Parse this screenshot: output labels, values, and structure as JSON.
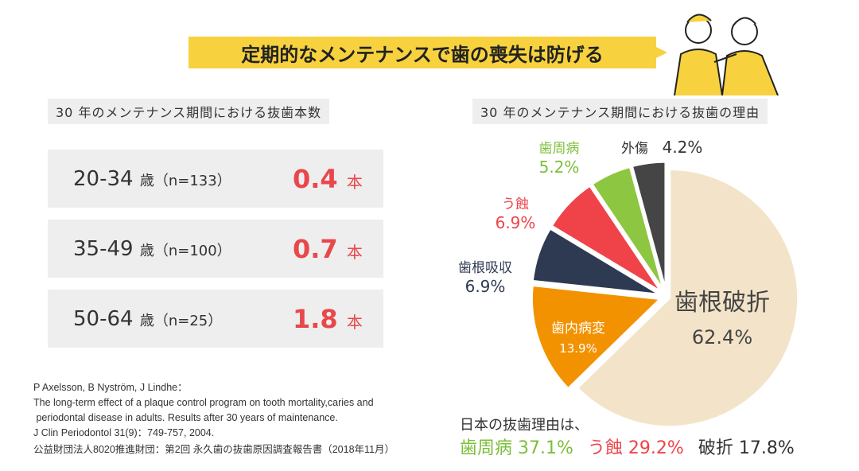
{
  "title": "定期的なメンテナンスで歯の喪失は防げる",
  "left": {
    "subtitle": "30 年のメンテナンス期間における抜歯本数",
    "rows": [
      {
        "age": "20-34",
        "unit_age": "歳",
        "n": "（n=133）",
        "value": "0.4",
        "unit": "本"
      },
      {
        "age": "35-49",
        "unit_age": "歳",
        "n": "（n=100）",
        "value": "0.7",
        "unit": "本"
      },
      {
        "age": "50-64",
        "unit_age": "歳",
        "n": "（n=25）",
        "value": "1.8",
        "unit": "本"
      }
    ]
  },
  "references": [
    "P Axelsson, B Nyström, J Lindhe：",
    "The long-term effect of a plaque control program on tooth mortality,caries and",
    " periodontal disease in adults. Results after 30 years of maintenance.",
    "J Clin Periodontol 31(9)：749-757, 2004.",
    "公益財団法人8020推進財団：第2回 永久歯の抜歯原因調査報告書（2018年11月）"
  ],
  "chart_data": {
    "type": "pie",
    "title": "30 年のメンテナンス期間における抜歯の理由",
    "start": "12 o'clock, clockwise",
    "slices": [
      {
        "label": "歯根破折",
        "value": 62.4,
        "color": "#f3e4c9",
        "text_color": "#444444"
      },
      {
        "label": "歯内病変",
        "value": 13.9,
        "color": "#f39200",
        "text_color": "#ffffff"
      },
      {
        "label": "歯根吸収",
        "value": 6.9,
        "color": "#2e3a52",
        "text_color": "#2e3a52"
      },
      {
        "label": "う蝕",
        "value": 6.9,
        "color": "#ef4349",
        "text_color": "#ef4349"
      },
      {
        "label": "歯周病",
        "value": 5.2,
        "color": "#8dc641",
        "text_color": "#7cbf3a"
      },
      {
        "label": "外傷",
        "value": 4.2,
        "color": "#454545",
        "text_color": "#333333"
      }
    ],
    "unit": "%"
  },
  "japan": {
    "intro": "日本の抜歯理由は、",
    "items": [
      {
        "label": "歯周病",
        "value": "37.1%",
        "color": "#7cbf3a"
      },
      {
        "label": "う蝕",
        "value": "29.2%",
        "color": "#ef4349"
      },
      {
        "label": "破折",
        "value": "17.8%",
        "color": "#333333"
      }
    ]
  }
}
